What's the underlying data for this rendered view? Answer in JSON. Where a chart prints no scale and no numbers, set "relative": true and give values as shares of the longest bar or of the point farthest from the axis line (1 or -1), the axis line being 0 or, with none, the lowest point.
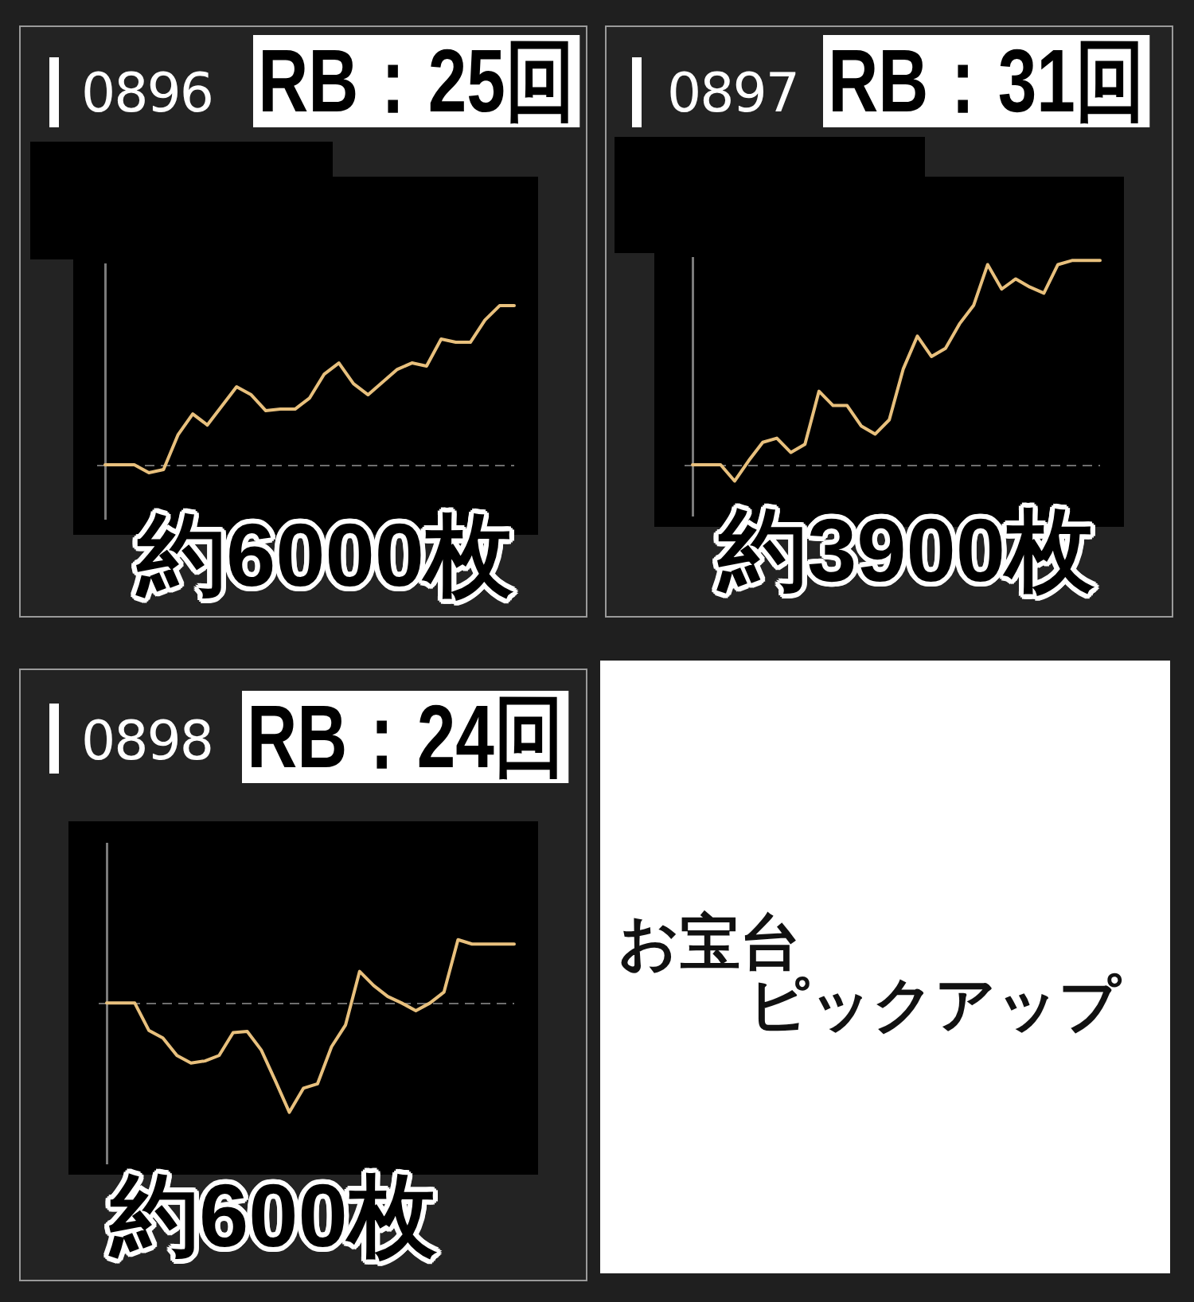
{
  "chart_data": [
    {
      "type": "line",
      "title": "0896",
      "annotations": [
        "RB：25回",
        "約6000枚"
      ],
      "relative": true,
      "color": "#e8c07d",
      "categories": [
        null,
        null,
        null,
        null,
        null,
        null,
        null,
        null,
        null,
        null,
        null,
        null,
        null,
        null,
        null,
        null,
        null,
        null,
        null,
        null,
        null,
        null,
        null,
        null,
        null,
        null,
        null,
        null,
        null
      ],
      "values": [
        0,
        0,
        0,
        -0.05,
        -0.03,
        0.19,
        0.32,
        0.25,
        0.37,
        0.49,
        0.44,
        0.34,
        0.35,
        0.35,
        0.42,
        0.57,
        0.64,
        0.51,
        0.44,
        0.52,
        0.6,
        0.64,
        0.62,
        0.79,
        0.77,
        0.77,
        0.91,
        1,
        1
      ],
      "ref_lines": [
        {
          "axis": "y",
          "value": 0,
          "color": "#6e6e6e",
          "line_style": "dashed"
        }
      ]
    },
    {
      "type": "line",
      "title": "0897",
      "annotations": [
        "RB：31回",
        "約3900枚"
      ],
      "relative": true,
      "color": "#e8c07d",
      "categories": [
        null,
        null,
        null,
        null,
        null,
        null,
        null,
        null,
        null,
        null,
        null,
        null,
        null,
        null,
        null,
        null,
        null,
        null,
        null,
        null,
        null,
        null,
        null,
        null,
        null,
        null,
        null,
        null,
        null,
        null
      ],
      "values": [
        0,
        0,
        0,
        -0.08,
        0.02,
        0.11,
        0.13,
        0.06,
        0.1,
        0.36,
        0.29,
        0.29,
        0.19,
        0.15,
        0.22,
        0.47,
        0.63,
        0.53,
        0.57,
        0.69,
        0.78,
        0.98,
        0.86,
        0.91,
        0.87,
        0.84,
        0.98,
        1,
        1,
        1
      ],
      "ref_lines": [
        {
          "axis": "y",
          "value": 0,
          "color": "#6e6e6e",
          "line_style": "dashed"
        }
      ]
    },
    {
      "type": "line",
      "title": "0898",
      "annotations": [
        "RB：24回",
        "約600枚"
      ],
      "relative": true,
      "color": "#e8c07d",
      "categories": [
        null,
        null,
        null,
        null,
        null,
        null,
        null,
        null,
        null,
        null,
        null,
        null,
        null,
        null,
        null,
        null,
        null,
        null,
        null,
        null,
        null,
        null,
        null,
        null,
        null,
        null,
        null,
        null,
        null,
        null
      ],
      "values": [
        0,
        0,
        0,
        -0.25,
        -0.32,
        -0.48,
        -0.55,
        -0.53,
        -0.48,
        -0.27,
        -0.26,
        -0.43,
        -0.71,
        -1,
        -0.78,
        -0.74,
        -0.4,
        -0.2,
        0.29,
        0.16,
        0.06,
        0,
        -0.07,
        0,
        0.1,
        0.58,
        0.54,
        0.54,
        0.54,
        0.54
      ],
      "ref_lines": [
        {
          "axis": "y",
          "value": 0,
          "color": "#6e6e6e",
          "line_style": "dashed"
        }
      ]
    },
    {
      "type": "other",
      "annotations": [
        "お宝台",
        "ピックアップ"
      ]
    }
  ]
}
